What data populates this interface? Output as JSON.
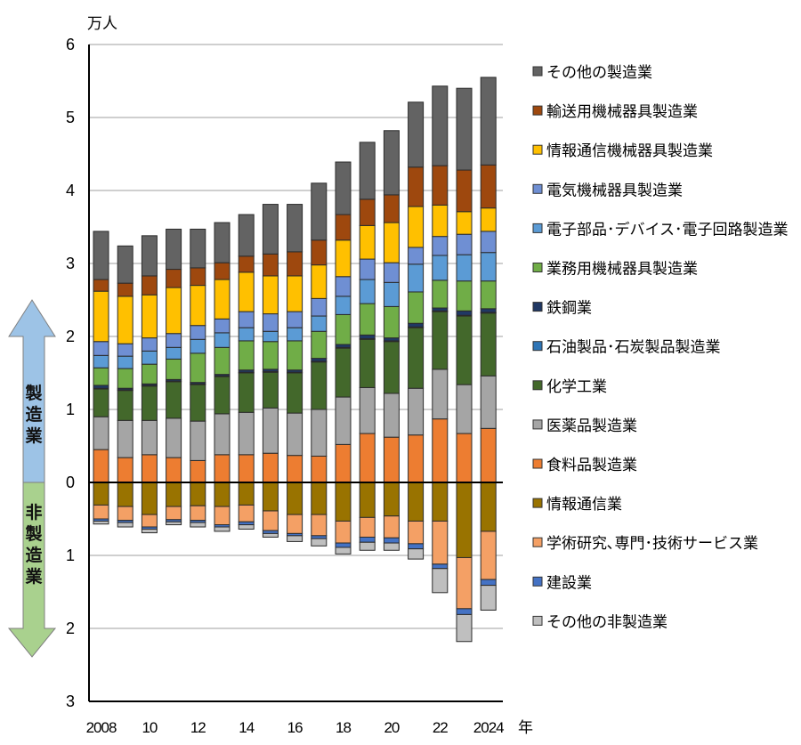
{
  "chart_data": {
    "type": "bar",
    "stacked": true,
    "unit_label": "万人",
    "xlabel": "年",
    "categories": [
      2008,
      2009,
      2010,
      2011,
      2012,
      2013,
      2014,
      2015,
      2016,
      2017,
      2018,
      2019,
      2020,
      2021,
      2022,
      2023,
      2024
    ],
    "x_tick_labels": [
      {
        "year": 2008,
        "label": "2008"
      },
      {
        "year": 2010,
        "label": "10"
      },
      {
        "year": 2012,
        "label": "12"
      },
      {
        "year": 2014,
        "label": "14"
      },
      {
        "year": 2016,
        "label": "16"
      },
      {
        "year": 2018,
        "label": "18"
      },
      {
        "year": 2020,
        "label": "20"
      },
      {
        "year": 2022,
        "label": "22"
      },
      {
        "year": 2024,
        "label": "2024"
      }
    ],
    "y_ticks": [
      {
        "value": 6,
        "label": "6"
      },
      {
        "value": 5,
        "label": "5"
      },
      {
        "value": 4,
        "label": "4"
      },
      {
        "value": 3,
        "label": "3"
      },
      {
        "value": 2,
        "label": "2"
      },
      {
        "value": 1,
        "label": "1"
      },
      {
        "value": 0,
        "label": "0"
      },
      {
        "value": -1,
        "label": "1"
      },
      {
        "value": -2,
        "label": "2"
      },
      {
        "value": -3,
        "label": "3"
      }
    ],
    "ylim": [
      -3,
      6
    ],
    "grid": true,
    "legend_position": "right",
    "side_arrows": {
      "up_label": "製造業",
      "down_label": "非製造業",
      "up_color": "#9dc3e6",
      "down_color": "#a9d18e"
    },
    "manufacturing_series": [
      {
        "name": "食料品製造業",
        "color": "#ed7d31",
        "values": [
          0.45,
          0.34,
          0.38,
          0.34,
          0.3,
          0.38,
          0.38,
          0.4,
          0.37,
          0.36,
          0.52,
          0.67,
          0.62,
          0.65,
          0.87,
          0.67,
          0.74
        ]
      },
      {
        "name": "医薬品製造業",
        "color": "#a5a5a5",
        "values": [
          0.45,
          0.51,
          0.47,
          0.54,
          0.54,
          0.56,
          0.58,
          0.62,
          0.58,
          0.64,
          0.65,
          0.63,
          0.6,
          0.64,
          0.68,
          0.67,
          0.72
        ]
      },
      {
        "name": "化学工業",
        "color": "#43682b",
        "values": [
          0.38,
          0.41,
          0.47,
          0.5,
          0.5,
          0.51,
          0.54,
          0.49,
          0.55,
          0.65,
          0.67,
          0.66,
          0.71,
          0.83,
          0.79,
          0.94,
          0.86
        ]
      },
      {
        "name": "石油製品･石炭製品製造業",
        "color": "#2e75b6",
        "values": [
          0.01,
          0.01,
          0.01,
          0.01,
          0.01,
          0.01,
          0.01,
          0.01,
          0.01,
          0.01,
          0.01,
          0.01,
          0.01,
          0.01,
          0.01,
          0.01,
          0.01
        ]
      },
      {
        "name": "鉄鋼業",
        "color": "#203864",
        "values": [
          0.04,
          0.02,
          0.02,
          0.02,
          0.02,
          0.02,
          0.03,
          0.03,
          0.03,
          0.04,
          0.04,
          0.05,
          0.04,
          0.05,
          0.04,
          0.06,
          0.05
        ]
      },
      {
        "name": "業務用機械器具製造業",
        "color": "#70ad47",
        "values": [
          0.24,
          0.27,
          0.27,
          0.28,
          0.4,
          0.37,
          0.4,
          0.38,
          0.4,
          0.37,
          0.41,
          0.43,
          0.43,
          0.43,
          0.38,
          0.41,
          0.38
        ]
      },
      {
        "name": "電子部品･デバイス･電子回路製造業",
        "color": "#5b9bd5",
        "values": [
          0.17,
          0.17,
          0.18,
          0.16,
          0.19,
          0.2,
          0.18,
          0.14,
          0.18,
          0.21,
          0.25,
          0.33,
          0.33,
          0.38,
          0.34,
          0.36,
          0.39
        ]
      },
      {
        "name": "電気機械器具製造業",
        "color": "#6f8fd3",
        "values": [
          0.19,
          0.17,
          0.18,
          0.19,
          0.19,
          0.19,
          0.22,
          0.24,
          0.22,
          0.24,
          0.27,
          0.28,
          0.27,
          0.23,
          0.26,
          0.28,
          0.29
        ]
      },
      {
        "name": "情報通信機械器具製造業",
        "color": "#ffc000",
        "values": [
          0.69,
          0.65,
          0.59,
          0.63,
          0.55,
          0.54,
          0.54,
          0.52,
          0.49,
          0.46,
          0.5,
          0.46,
          0.55,
          0.56,
          0.43,
          0.31,
          0.32
        ]
      },
      {
        "name": "輸送用機械器具製造業",
        "color": "#9e480e",
        "values": [
          0.16,
          0.18,
          0.26,
          0.25,
          0.24,
          0.23,
          0.22,
          0.3,
          0.33,
          0.34,
          0.35,
          0.36,
          0.38,
          0.54,
          0.54,
          0.57,
          0.59
        ]
      },
      {
        "name": "その他の製造業",
        "color": "#636363",
        "values": [
          0.66,
          0.51,
          0.55,
          0.55,
          0.53,
          0.55,
          0.57,
          0.68,
          0.65,
          0.78,
          0.72,
          0.78,
          0.88,
          0.89,
          1.09,
          1.12,
          1.2
        ]
      }
    ],
    "non_manufacturing_series": [
      {
        "name": "情報通信業",
        "color": "#997300",
        "values": [
          0.31,
          0.33,
          0.44,
          0.33,
          0.32,
          0.33,
          0.31,
          0.39,
          0.44,
          0.44,
          0.53,
          0.48,
          0.46,
          0.53,
          0.53,
          1.03,
          0.67
        ]
      },
      {
        "name": "学術研究､専門･技術サービス業",
        "color": "#f4a065",
        "values": [
          0.19,
          0.19,
          0.17,
          0.18,
          0.2,
          0.25,
          0.23,
          0.27,
          0.26,
          0.29,
          0.3,
          0.27,
          0.3,
          0.31,
          0.59,
          0.7,
          0.66
        ]
      },
      {
        "name": "建設業",
        "color": "#4472c4",
        "values": [
          0.03,
          0.03,
          0.03,
          0.03,
          0.03,
          0.03,
          0.04,
          0.04,
          0.03,
          0.04,
          0.06,
          0.07,
          0.07,
          0.07,
          0.06,
          0.08,
          0.08
        ]
      },
      {
        "name": "その他の非製造業",
        "color": "#bfbfbf",
        "values": [
          0.04,
          0.06,
          0.05,
          0.04,
          0.06,
          0.06,
          0.06,
          0.05,
          0.08,
          0.1,
          0.09,
          0.11,
          0.1,
          0.14,
          0.33,
          0.37,
          0.34
        ]
      }
    ],
    "legend": [
      {
        "label": "その他の製造業",
        "color": "#636363"
      },
      {
        "label": "輸送用機械器具製造業",
        "color": "#9e480e"
      },
      {
        "label": "情報通信機械器具製造業",
        "color": "#ffc000"
      },
      {
        "label": "電気機械器具製造業",
        "color": "#6f8fd3"
      },
      {
        "label": "電子部品･デバイス･電子回路製造業",
        "color": "#5b9bd5"
      },
      {
        "label": "業務用機械器具製造業",
        "color": "#70ad47"
      },
      {
        "label": "鉄鋼業",
        "color": "#203864"
      },
      {
        "label": "石油製品･石炭製品製造業",
        "color": "#2e75b6"
      },
      {
        "label": "化学工業",
        "color": "#43682b"
      },
      {
        "label": "医薬品製造業",
        "color": "#a5a5a5"
      },
      {
        "label": "食料品製造業",
        "color": "#ed7d31"
      },
      {
        "label": "情報通信業",
        "color": "#997300"
      },
      {
        "label": "学術研究､専門･技術サービス業",
        "color": "#f4a065"
      },
      {
        "label": "建設業",
        "color": "#4472c4"
      },
      {
        "label": "その他の非製造業",
        "color": "#bfbfbf"
      }
    ]
  }
}
